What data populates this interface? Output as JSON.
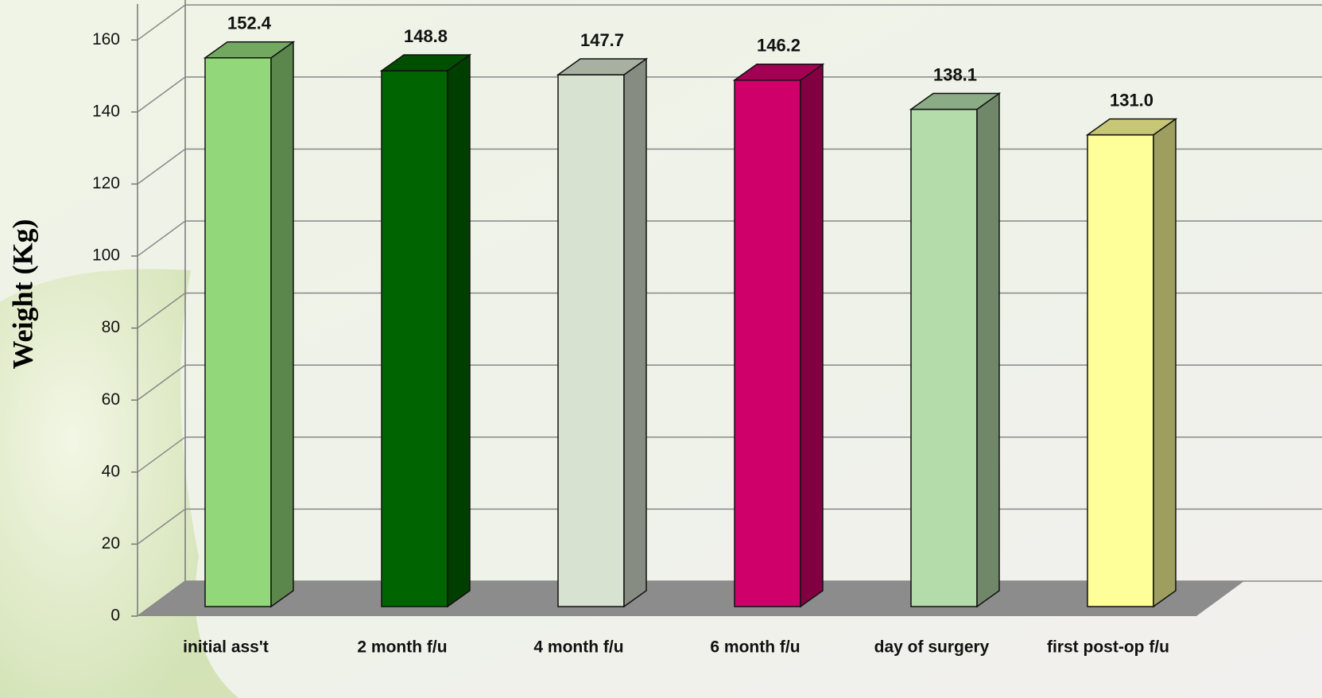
{
  "chart_data": {
    "type": "bar3d",
    "y_label": "Weight (Kg)",
    "categories": [
      "initial ass't",
      "2 month f/u",
      "4 month f/u",
      "6 month f/u",
      "day of surgery",
      "first post-op f/u"
    ],
    "values": [
      152.4,
      148.8,
      147.7,
      146.2,
      138.1,
      131.0
    ],
    "value_labels": [
      "152.4",
      "148.8",
      "147.7",
      "146.2",
      "138.1",
      "131.0"
    ],
    "colors": [
      "#92d87a",
      "#006400",
      "#d8e2d0",
      "#d0006a",
      "#b4dcaa",
      "#ffff99"
    ],
    "ylim": [
      0,
      170
    ],
    "yticks": [
      0,
      20,
      40,
      60,
      80,
      100,
      120,
      140,
      160
    ],
    "grid": true
  }
}
